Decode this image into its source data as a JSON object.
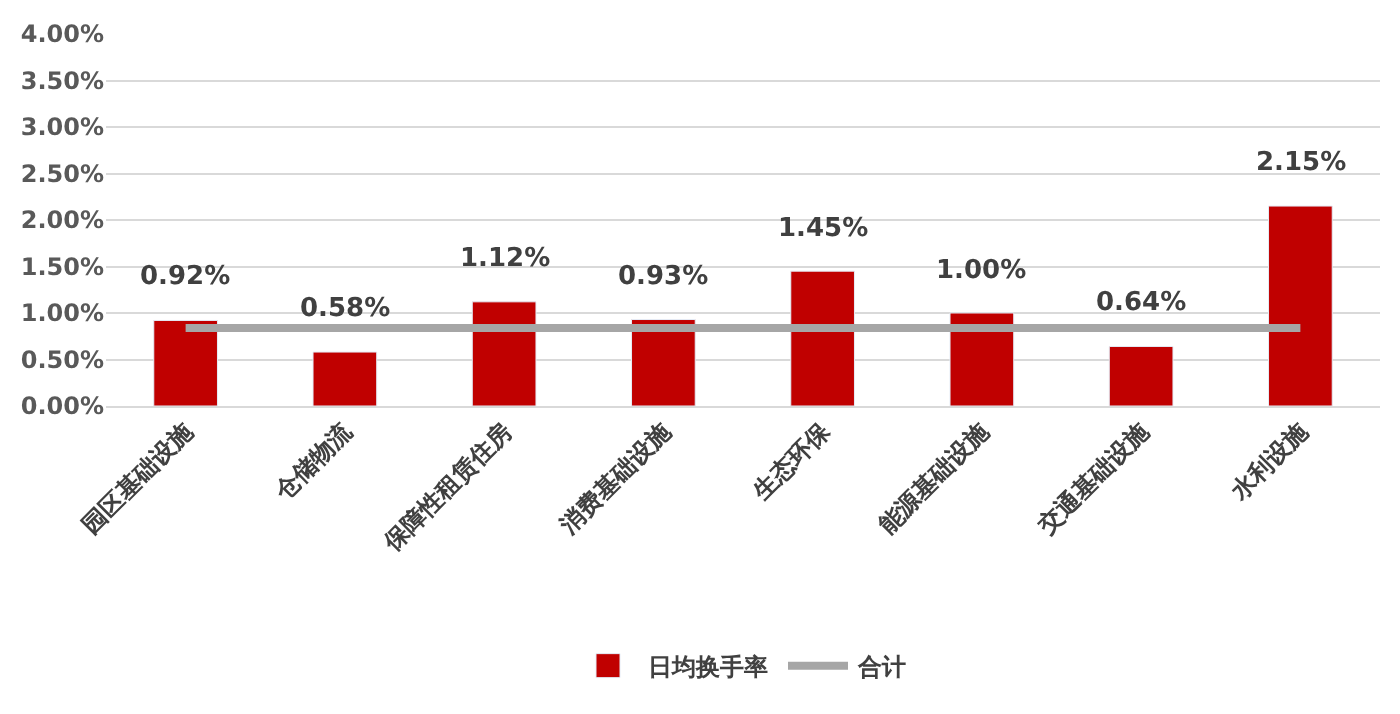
{
  "chart_data": {
    "type": "bar",
    "categories": [
      "园区基础设施",
      "仓储物流",
      "保障性租赁住房",
      "消费基础设施",
      "生态环保",
      "能源基础设施",
      "交通基础设施",
      "水利设施"
    ],
    "series": [
      {
        "name": "日均换手率",
        "color": "#c00000",
        "values": [
          0.92,
          0.58,
          1.12,
          0.93,
          1.45,
          1.0,
          0.64,
          2.15
        ],
        "value_labels": [
          "0.92%",
          "0.58%",
          "1.12%",
          "0.93%",
          "1.45%",
          "1.00%",
          "0.64%",
          "2.15%"
        ]
      },
      {
        "name": "合计",
        "type": "line",
        "color": "#a6a6a6",
        "values": [
          0.84,
          0.84,
          0.84,
          0.84,
          0.84,
          0.84,
          0.84,
          0.84
        ],
        "marker": "none",
        "line_style": "solid"
      }
    ],
    "ylim": [
      0,
      4
    ],
    "yticks": [
      {
        "value": 0,
        "label": "0.00%"
      },
      {
        "value": 0.5,
        "label": "0.50%"
      },
      {
        "value": 1,
        "label": "1.00%"
      },
      {
        "value": 1.5,
        "label": "1.50%"
      },
      {
        "value": 2,
        "label": "2.00%"
      },
      {
        "value": 2.5,
        "label": "2.50%"
      },
      {
        "value": 3,
        "label": "3.00%"
      },
      {
        "value": 3.5,
        "label": "3.50%"
      },
      {
        "value": 4,
        "label": "4.00%"
      }
    ],
    "grid": "y",
    "legend": "bottom"
  }
}
